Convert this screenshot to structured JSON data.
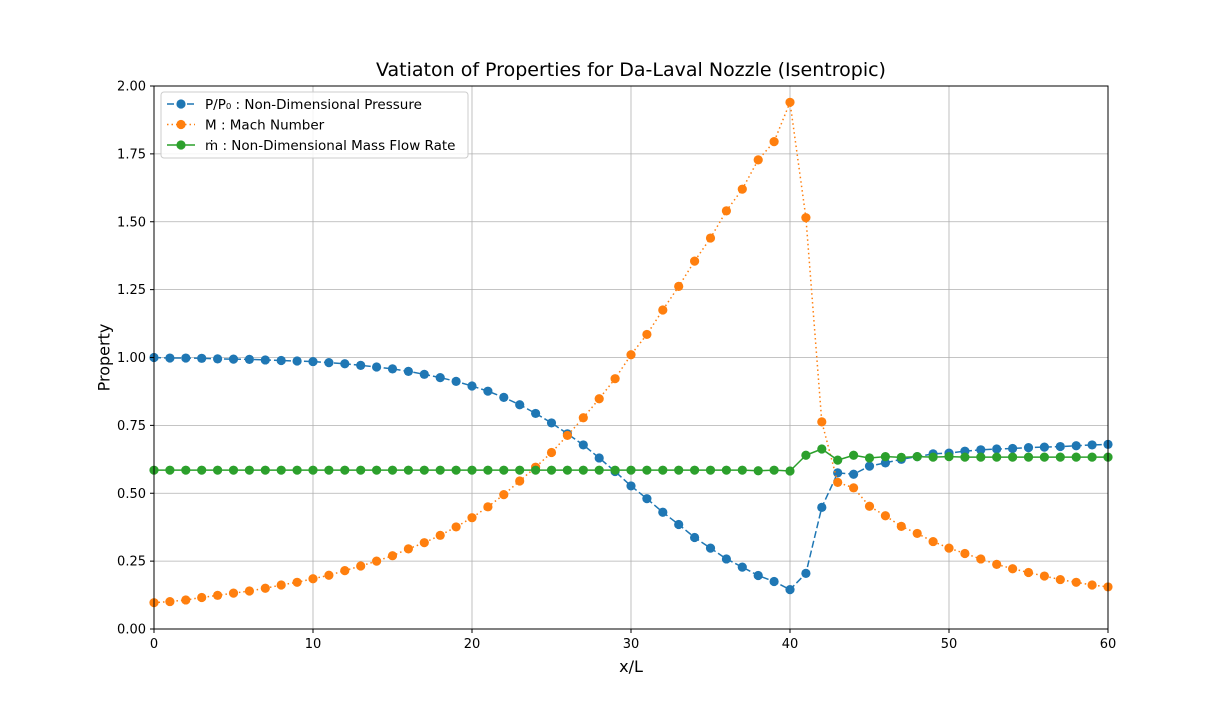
{
  "chart_data": {
    "type": "line",
    "title": "Vatiaton of Properties for Da-Laval Nozzle (Isentropic)",
    "xlabel": "x/L",
    "ylabel": "Property",
    "xlim": [
      0,
      60
    ],
    "ylim": [
      0,
      2.0
    ],
    "xticks": [
      0,
      10,
      20,
      30,
      40,
      50,
      60
    ],
    "yticks": [
      0,
      0.25,
      0.5,
      0.75,
      1.0,
      1.25,
      1.5,
      1.75,
      2.0
    ],
    "xtick_labels": [
      "0",
      "10",
      "20",
      "30",
      "40",
      "50",
      "60"
    ],
    "ytick_labels": [
      "0.00",
      "0.25",
      "0.50",
      "0.75",
      "1.00",
      "1.25",
      "1.50",
      "1.75",
      "2.00"
    ],
    "grid": true,
    "legend_position": "top-left",
    "x": [
      0,
      1,
      2,
      3,
      4,
      5,
      6,
      7,
      8,
      9,
      10,
      11,
      12,
      13,
      14,
      15,
      16,
      17,
      18,
      19,
      20,
      21,
      22,
      23,
      24,
      25,
      26,
      27,
      28,
      29,
      30,
      31,
      32,
      33,
      34,
      35,
      36,
      37,
      38,
      39,
      40,
      41,
      42,
      43,
      44,
      45,
      46,
      47,
      48,
      49,
      50,
      51,
      52,
      53,
      54,
      55,
      56,
      57,
      58,
      59,
      60
    ],
    "series": [
      {
        "name": "P/P₀ : Non-Dimensional Pressure",
        "color": "#1f77b4",
        "dash": "dashed",
        "values": [
          1.0,
          0.998,
          0.998,
          0.997,
          0.995,
          0.994,
          0.993,
          0.991,
          0.989,
          0.987,
          0.985,
          0.981,
          0.977,
          0.971,
          0.965,
          0.958,
          0.949,
          0.938,
          0.926,
          0.912,
          0.895,
          0.876,
          0.853,
          0.826,
          0.794,
          0.759,
          0.719,
          0.678,
          0.63,
          0.58,
          0.527,
          0.48,
          0.43,
          0.385,
          0.337,
          0.298,
          0.258,
          0.228,
          0.197,
          0.175,
          0.145,
          0.205,
          0.448,
          0.575,
          0.57,
          0.6,
          0.612,
          0.625,
          0.635,
          0.645,
          0.648,
          0.655,
          0.66,
          0.663,
          0.665,
          0.668,
          0.67,
          0.672,
          0.675,
          0.678,
          0.68
        ]
      },
      {
        "name": "M : Mach Number",
        "color": "#ff7f0e",
        "dash": "dotted",
        "values": [
          0.097,
          0.101,
          0.107,
          0.116,
          0.124,
          0.132,
          0.14,
          0.15,
          0.162,
          0.172,
          0.185,
          0.198,
          0.215,
          0.232,
          0.25,
          0.27,
          0.295,
          0.318,
          0.345,
          0.376,
          0.41,
          0.45,
          0.495,
          0.545,
          0.596,
          0.65,
          0.713,
          0.778,
          0.848,
          0.922,
          1.01,
          1.085,
          1.175,
          1.262,
          1.355,
          1.44,
          1.54,
          1.62,
          1.728,
          1.795,
          1.94,
          1.515,
          0.763,
          0.54,
          0.52,
          0.452,
          0.417,
          0.378,
          0.352,
          0.322,
          0.298,
          0.278,
          0.258,
          0.238,
          0.222,
          0.208,
          0.195,
          0.182,
          0.172,
          0.162,
          0.155
        ]
      },
      {
        "name": "ṁ : Non-Dimensional Mass Flow Rate",
        "color": "#2ca02c",
        "dash": "solid",
        "values": [
          0.585,
          0.585,
          0.585,
          0.585,
          0.585,
          0.585,
          0.585,
          0.585,
          0.585,
          0.585,
          0.585,
          0.585,
          0.585,
          0.585,
          0.585,
          0.585,
          0.585,
          0.585,
          0.585,
          0.585,
          0.585,
          0.585,
          0.585,
          0.585,
          0.585,
          0.585,
          0.585,
          0.585,
          0.585,
          0.585,
          0.585,
          0.585,
          0.585,
          0.585,
          0.585,
          0.585,
          0.585,
          0.585,
          0.583,
          0.585,
          0.582,
          0.64,
          0.663,
          0.622,
          0.64,
          0.63,
          0.635,
          0.632,
          0.635,
          0.633,
          0.635,
          0.633,
          0.633,
          0.633,
          0.633,
          0.633,
          0.633,
          0.633,
          0.633,
          0.633,
          0.633
        ]
      }
    ]
  }
}
